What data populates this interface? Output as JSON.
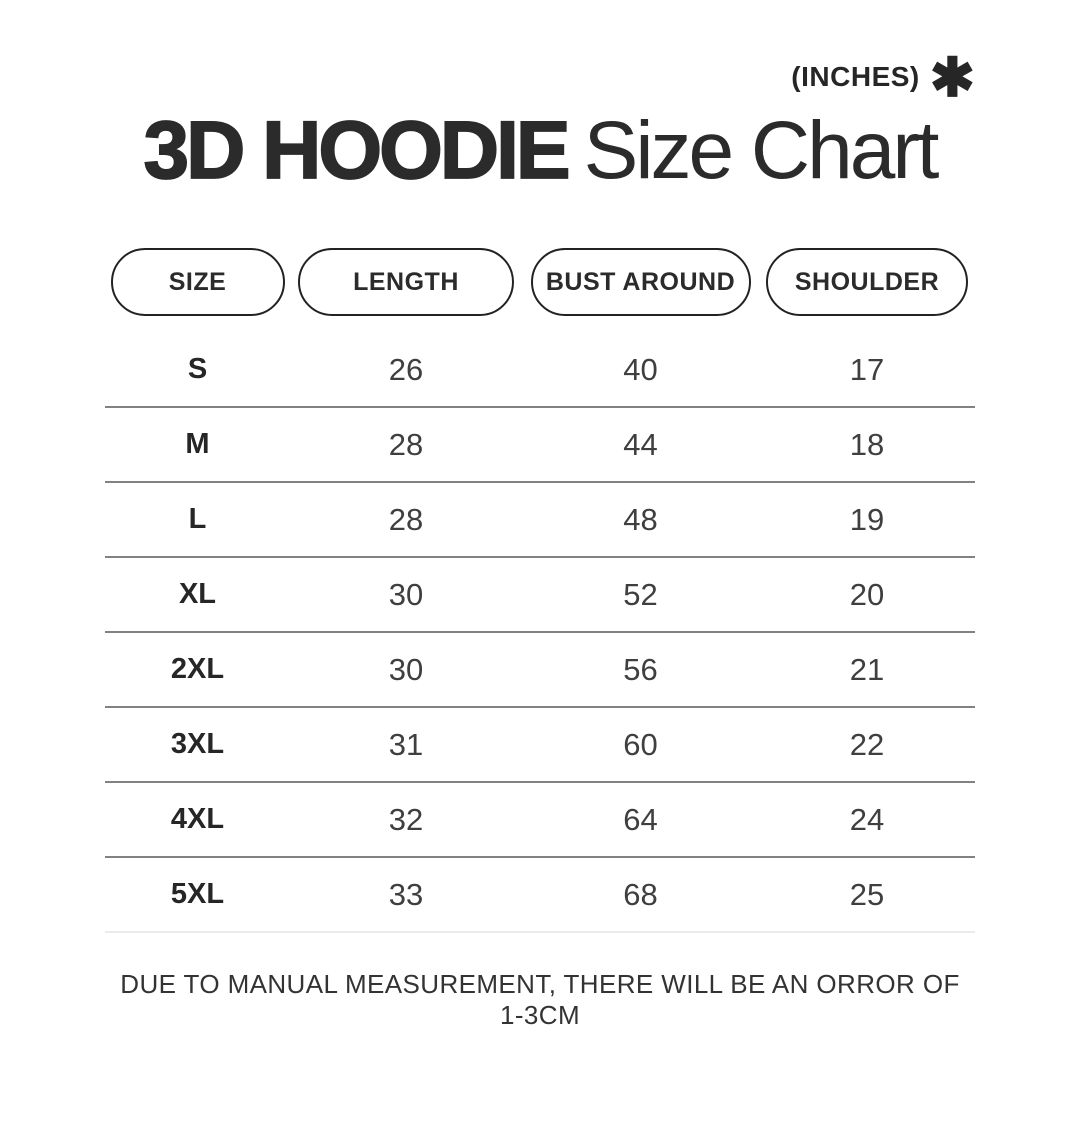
{
  "page": {
    "background": "#ffffff"
  },
  "header": {
    "units_label": "(INCHES)",
    "asterisk": "✱",
    "title": {
      "emphasis": "3D HOODIE",
      "rest": "Size Chart"
    }
  },
  "table": {
    "columns": [
      {
        "label": "SIZE"
      },
      {
        "label": "LENGTH"
      },
      {
        "label": "BUST AROUND"
      },
      {
        "label": "SHOULDER"
      }
    ],
    "rows": [
      {
        "size": "S",
        "length": "26",
        "bust_around": "40",
        "shoulder": "17"
      },
      {
        "size": "M",
        "length": "28",
        "bust_around": "44",
        "shoulder": "18"
      },
      {
        "size": "L",
        "length": "28",
        "bust_around": "48",
        "shoulder": "19"
      },
      {
        "size": "XL",
        "length": "30",
        "bust_around": "52",
        "shoulder": "20"
      },
      {
        "size": "2XL",
        "length": "30",
        "bust_around": "56",
        "shoulder": "21"
      },
      {
        "size": "3XL",
        "length": "31",
        "bust_around": "60",
        "shoulder": "22"
      },
      {
        "size": "4XL",
        "length": "32",
        "bust_around": "64",
        "shoulder": "24"
      },
      {
        "size": "5XL",
        "length": "33",
        "bust_around": "68",
        "shoulder": "25"
      }
    ]
  },
  "footer": {
    "note": "DUE TO MANUAL MEASUREMENT, THERE WILL BE AN ORROR OF 1-3CM"
  },
  "colors": {
    "text": "#2b2b2b",
    "number_text": "#3f3f3f",
    "pill_border": "#222222",
    "divider": "#828282",
    "divider_last": "#ebebeb",
    "background": "#ffffff"
  },
  "chart_data": {
    "type": "table",
    "title": "3D HOODIE Size Chart",
    "units": "INCHES",
    "columns": [
      "SIZE",
      "LENGTH",
      "BUST AROUND",
      "SHOULDER"
    ],
    "rows": [
      [
        "S",
        26,
        40,
        17
      ],
      [
        "M",
        28,
        44,
        18
      ],
      [
        "L",
        28,
        48,
        19
      ],
      [
        "XL",
        30,
        52,
        20
      ],
      [
        "2XL",
        30,
        56,
        21
      ],
      [
        "3XL",
        31,
        60,
        22
      ],
      [
        "4XL",
        32,
        64,
        24
      ],
      [
        "5XL",
        33,
        68,
        25
      ]
    ],
    "note": "DUE TO MANUAL MEASUREMENT, THERE WILL BE AN ORROR OF 1-3CM"
  }
}
